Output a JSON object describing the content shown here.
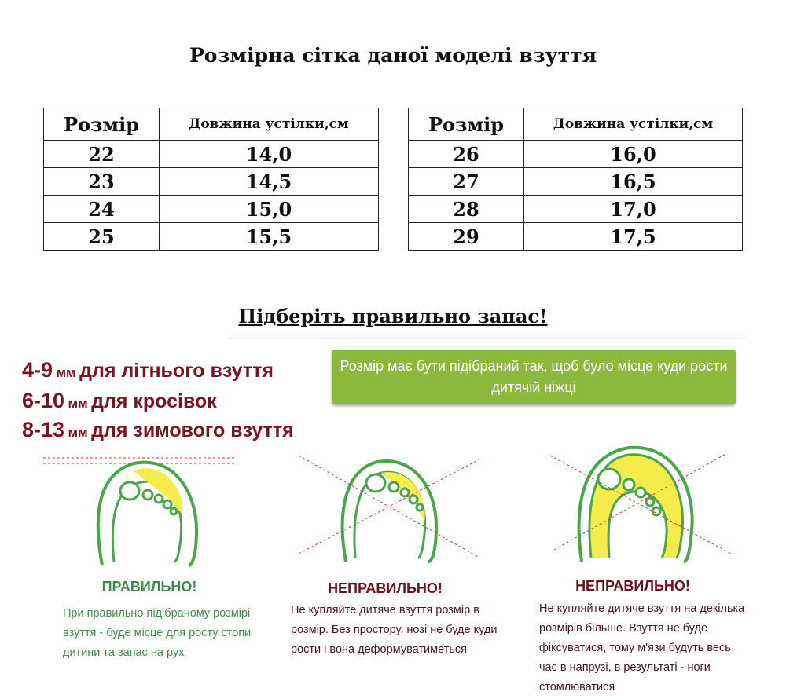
{
  "title": "Розмірна сітка даної моделі взуття",
  "table_headers": {
    "size": "Розмір",
    "length": "Довжина устілки,см"
  },
  "table_left": [
    {
      "size": "22",
      "length": "14,0"
    },
    {
      "size": "23",
      "length": "14,5"
    },
    {
      "size": "24",
      "length": "15,0"
    },
    {
      "size": "25",
      "length": "15,5"
    }
  ],
  "table_right": [
    {
      "size": "26",
      "length": "16,0"
    },
    {
      "size": "27",
      "length": "16,5"
    },
    {
      "size": "28",
      "length": "17,0"
    },
    {
      "size": "29",
      "length": "17,5"
    }
  ],
  "subtitle": "Підберіть правильно запас!",
  "allowances": [
    {
      "range": "4-9",
      "unit": "мм",
      "text": "для літнього взуття"
    },
    {
      "range": "6-10",
      "unit": "мм",
      "text": "для кросівок"
    },
    {
      "range": "8-13",
      "unit": "мм",
      "text": "для зимового взуття"
    }
  ],
  "note_box": "Розмір має бути підібраний так, щоб було місце куди рости дитячій ніжці",
  "colors": {
    "accent_red": "#7a1422",
    "green_box": "#8cb83c",
    "correct_green": "#3f8a4a"
  },
  "cases": [
    {
      "label": "ПРАВИЛЬНО!",
      "text": "При правильно підібраному розмірі взуття - буде місце для росту стопи дитини та запас на рух"
    },
    {
      "label": "НЕПРАВИЛЬНО!",
      "text": "Не купляйте дитяче взуття розмір в розмір. Без простору, нозі не буде куди рости і вона деформуватиметься"
    },
    {
      "label": "НЕПРАВИЛЬНО!",
      "text": "Не купляйте дитяче взуття на декілька розмірів більше. Взуття не буде фіксуватися, тому м'язи будуть весь час в напрузі, в результаті - ноги стомлюватися"
    }
  ]
}
